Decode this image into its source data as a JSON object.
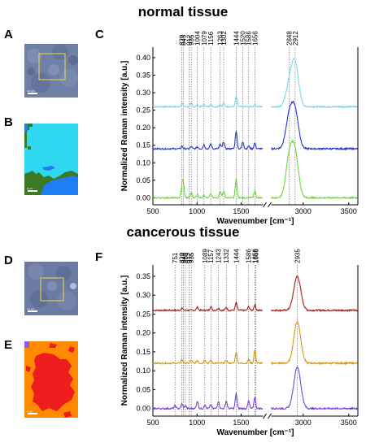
{
  "section_titles": {
    "normal": "normal tissue",
    "cancer": "cancerous tissue"
  },
  "panel_letters": {
    "a": "A",
    "b": "B",
    "c": "C",
    "d": "D",
    "e": "E",
    "f": "F"
  },
  "scale_labels": {
    "a": "10 µm",
    "b": "8 µm",
    "d": "10 µm",
    "e": "8 µm"
  },
  "colors": {
    "micro_bg": "#6f7fa6",
    "roi_box": "#e6e23a",
    "map_b": {
      "cyan": "#2fd8f0",
      "blue": "#1f7ef4",
      "green": "#3c7a22"
    },
    "map_e": {
      "orange": "#ff8a00",
      "red": "#ee1c1c",
      "purple": "#8a5cf0"
    }
  },
  "chart_data": [
    {
      "type": "line",
      "panel": "C",
      "ylabel": "Normalized Raman intensity [a.u.]",
      "xlabel": "Wavenumber [cm⁻¹]",
      "xlim": [
        500,
        3600
      ],
      "axis_break": [
        1750,
        2650
      ],
      "ylim": [
        -0.02,
        0.43
      ],
      "yticks": [
        0.0,
        0.05,
        0.1,
        0.15,
        0.2,
        0.25,
        0.3,
        0.35,
        0.4
      ],
      "xticks": [
        500,
        1000,
        1500,
        3000,
        3500
      ],
      "peak_labels": [
        "829",
        "845",
        "912",
        "935",
        "1004",
        "1079",
        "1156",
        "1263",
        "1302",
        "1444",
        "1520",
        "1586",
        "1656",
        "2848",
        "2912"
      ],
      "series": [
        {
          "color": "#78d7ec",
          "offset": 0.26,
          "peaks": [
            [
              829,
              0.01
            ],
            [
              935,
              0.01
            ],
            [
              1004,
              0.006
            ],
            [
              1079,
              0.008
            ],
            [
              1156,
              0.008
            ],
            [
              1263,
              0.006
            ],
            [
              1302,
              0.01
            ],
            [
              1444,
              0.03
            ],
            [
              1656,
              0.008
            ],
            [
              2848,
              0.06
            ],
            [
              2912,
              0.12
            ]
          ]
        },
        {
          "color": "#2b36c8",
          "offset": 0.14,
          "peaks": [
            [
              829,
              0.008
            ],
            [
              935,
              0.006
            ],
            [
              1004,
              0.006
            ],
            [
              1079,
              0.012
            ],
            [
              1156,
              0.014
            ],
            [
              1263,
              0.012
            ],
            [
              1302,
              0.02
            ],
            [
              1444,
              0.05
            ],
            [
              1520,
              0.02
            ],
            [
              1586,
              0.008
            ],
            [
              1656,
              0.016
            ],
            [
              2848,
              0.09
            ],
            [
              2912,
              0.1
            ]
          ]
        },
        {
          "color": "#6fd640",
          "offset": 0.0,
          "peaks": [
            [
              829,
              0.03
            ],
            [
              845,
              0.04
            ],
            [
              935,
              0.015
            ],
            [
              1004,
              0.012
            ],
            [
              1079,
              0.01
            ],
            [
              1156,
              0.012
            ],
            [
              1263,
              0.02
            ],
            [
              1302,
              0.02
            ],
            [
              1444,
              0.055
            ],
            [
              1656,
              0.02
            ],
            [
              2848,
              0.11
            ],
            [
              2912,
              0.12
            ]
          ]
        }
      ]
    },
    {
      "type": "line",
      "panel": "F",
      "ylabel": "Normalized Raman intensity [a.u.]",
      "xlabel": "Wavenumber [cm⁻¹]",
      "xlim": [
        500,
        3600
      ],
      "axis_break": [
        1750,
        2650
      ],
      "ylim": [
        -0.02,
        0.38
      ],
      "yticks": [
        0.0,
        0.05,
        0.1,
        0.15,
        0.2,
        0.25,
        0.3,
        0.35
      ],
      "xticks": [
        500,
        1000,
        1500,
        3000,
        3500
      ],
      "peak_labels": [
        "751",
        "829",
        "845",
        "868",
        "912",
        "935",
        "1089",
        "1157",
        "1243",
        "1332",
        "1444",
        "1586",
        "1656",
        "1666",
        "2935"
      ],
      "series": [
        {
          "color": "#a8201a",
          "offset": 0.26,
          "peaks": [
            [
              829,
              0.006
            ],
            [
              1004,
              0.008
            ],
            [
              1157,
              0.01
            ],
            [
              1243,
              0.006
            ],
            [
              1332,
              0.008
            ],
            [
              1444,
              0.02
            ],
            [
              1586,
              0.01
            ],
            [
              1656,
              0.015
            ],
            [
              2935,
              0.09
            ]
          ]
        },
        {
          "color": "#d09a1c",
          "offset": 0.12,
          "peaks": [
            [
              829,
              0.01
            ],
            [
              935,
              0.008
            ],
            [
              1004,
              0.008
            ],
            [
              1089,
              0.01
            ],
            [
              1157,
              0.008
            ],
            [
              1332,
              0.008
            ],
            [
              1444,
              0.03
            ],
            [
              1586,
              0.01
            ],
            [
              1656,
              0.035
            ],
            [
              2935,
              0.11
            ]
          ]
        },
        {
          "color": "#7b44d8",
          "offset": 0.0,
          "peaks": [
            [
              751,
              0.008
            ],
            [
              829,
              0.012
            ],
            [
              868,
              0.008
            ],
            [
              1004,
              0.02
            ],
            [
              1089,
              0.01
            ],
            [
              1157,
              0.01
            ],
            [
              1243,
              0.02
            ],
            [
              1332,
              0.02
            ],
            [
              1444,
              0.04
            ],
            [
              1586,
              0.02
            ],
            [
              1656,
              0.03
            ],
            [
              2935,
              0.11
            ]
          ]
        }
      ]
    }
  ]
}
